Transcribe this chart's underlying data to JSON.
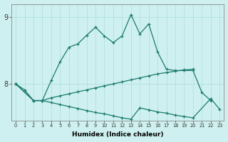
{
  "xlabel": "Humidex (Indice chaleur)",
  "color": "#1a7a6e",
  "bg_color": "#cff0f0",
  "grid_color": "#aadddd",
  "ylim": [
    7.45,
    9.2
  ],
  "xlim": [
    -0.5,
    23.5
  ],
  "yticks": [
    8,
    9
  ],
  "line1_x": [
    0,
    1,
    2,
    3,
    4,
    5,
    6,
    7,
    8,
    9,
    10,
    11,
    12,
    13,
    14,
    15,
    16,
    17,
    18,
    19,
    20,
    21,
    22
  ],
  "line1_y": [
    8.0,
    7.91,
    7.75,
    7.75,
    8.05,
    8.33,
    8.55,
    8.6,
    8.73,
    8.85,
    8.72,
    8.62,
    8.72,
    9.04,
    8.75,
    8.9,
    8.48,
    8.22,
    8.2,
    8.2,
    8.2,
    7.87,
    7.75
  ],
  "line2_x": [
    0,
    2,
    3,
    4,
    5,
    6,
    7,
    8,
    9,
    10,
    11,
    12,
    13,
    14,
    15,
    16,
    17,
    18,
    19,
    20
  ],
  "line2_y": [
    8.0,
    7.75,
    7.75,
    7.79,
    7.82,
    7.85,
    7.88,
    7.91,
    7.94,
    7.97,
    8.0,
    8.03,
    8.06,
    8.09,
    8.12,
    8.15,
    8.17,
    8.19,
    8.21,
    8.22
  ],
  "line3_x": [
    0,
    2,
    3,
    4,
    5,
    6,
    7,
    8,
    9,
    10,
    11,
    12,
    13,
    14,
    15,
    16,
    17,
    18,
    19,
    20,
    22,
    23
  ],
  "line3_y": [
    8.0,
    7.75,
    7.75,
    7.72,
    7.69,
    7.66,
    7.63,
    7.6,
    7.57,
    7.55,
    7.52,
    7.49,
    7.47,
    7.64,
    7.61,
    7.58,
    7.56,
    7.53,
    7.51,
    7.49,
    7.78,
    7.62
  ]
}
